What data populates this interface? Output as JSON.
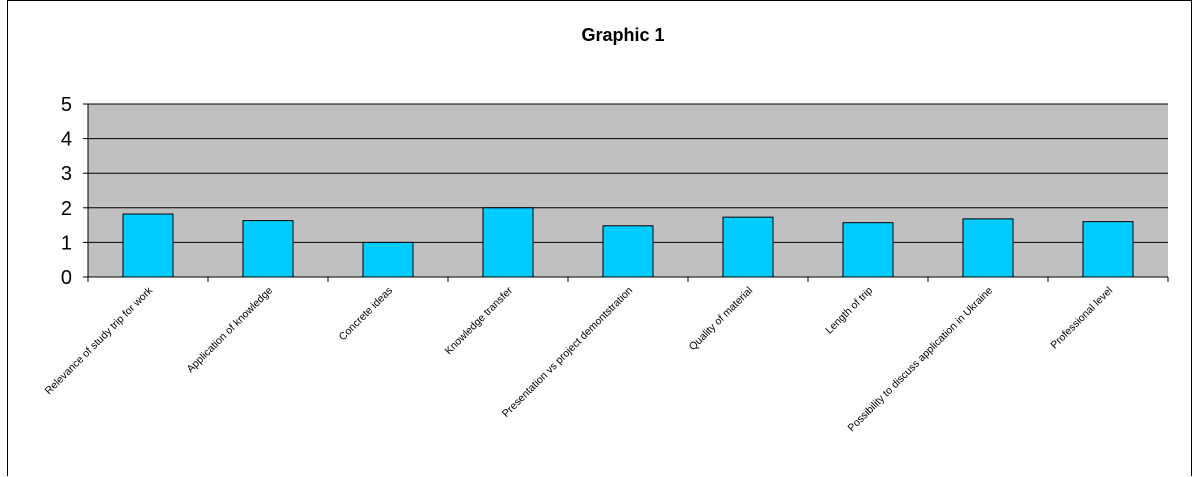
{
  "chart_data": {
    "type": "bar",
    "title": "Graphic 1",
    "xlabel": "",
    "ylabel": "",
    "ylim": [
      0,
      5
    ],
    "yticks": [
      0,
      1,
      2,
      3,
      4,
      5
    ],
    "grid": true,
    "legend": "none",
    "plot_background": "#c0c0c0",
    "bar_color": "#00ccff",
    "categories": [
      "Relevance of study trip for work",
      "Application of knowledge",
      "Concrete ideas",
      "Knowledge transfer",
      "Presentation vs project demontstration",
      "Quality of material",
      "Length of trip",
      "Possibility to discuss application in Ukraine",
      "Professional level"
    ],
    "values": [
      1.82,
      1.63,
      1.0,
      2.0,
      1.48,
      1.73,
      1.57,
      1.68,
      1.6
    ]
  }
}
